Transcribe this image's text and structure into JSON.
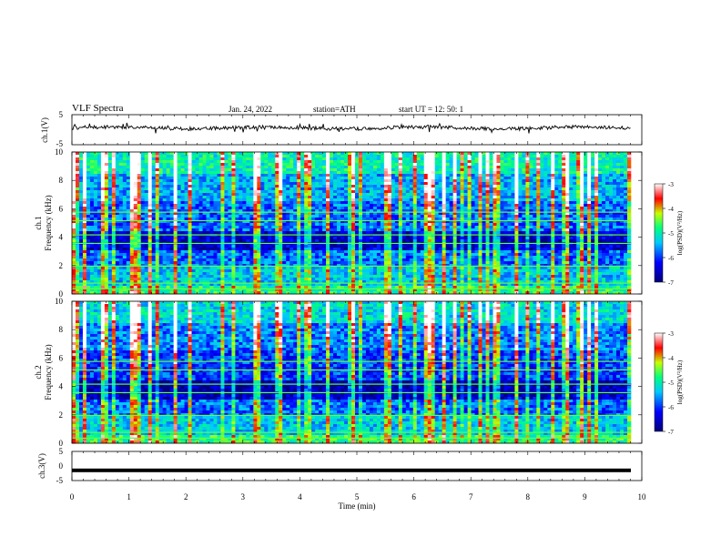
{
  "header": {
    "title": "VLF  Spectra",
    "date": "Jan. 24, 2022",
    "station": "station=ATH",
    "start": "start  UT  =   12: 50: 1"
  },
  "colors": {
    "spectrogram_low": "#00007a",
    "spectrogram_mid": "#00c8ff",
    "spectrogram_high": "#ff0000",
    "trace": "#000000"
  },
  "chart_data": [
    {
      "type": "line",
      "panel": "ch1-waveform",
      "ylabel": "ch.1(V)",
      "ylim": [
        -5,
        5
      ],
      "yticks": [
        "5",
        "-5"
      ],
      "xlim": [
        0,
        10
      ],
      "series": [
        {
          "values_description_free": true,
          "level": 0.5,
          "noise": 0.6
        }
      ]
    },
    {
      "type": "heatmap",
      "panel": "ch1-spectrogram",
      "ylabel": "ch.1\nFrequency (kHz)",
      "ylabel_line1": "ch.1",
      "ylabel_line2": "Frequency (kHz)",
      "ylim": [
        0,
        10
      ],
      "yticks": [
        "0",
        "2",
        "4",
        "6",
        "8",
        "10"
      ],
      "xlim": [
        0,
        9.8
      ],
      "colorbar": {
        "label": "log(PSD)(V²/Hz)",
        "range": [
          -7,
          -3
        ],
        "ticks": [
          "-3",
          "-4",
          "-5",
          "-6",
          "-7"
        ]
      }
    },
    {
      "type": "heatmap",
      "panel": "ch2-spectrogram",
      "ylabel_line1": "ch.2",
      "ylabel_line2": "Frequency (kHz)",
      "ylim": [
        0,
        10
      ],
      "yticks": [
        "0",
        "2",
        "4",
        "6",
        "8",
        "10"
      ],
      "xlim": [
        0,
        9.8
      ],
      "colorbar": {
        "label": "log(PSD)(V²/Hz)",
        "range": [
          -7,
          -3
        ],
        "ticks": [
          "-3",
          "-4",
          "-5",
          "-6",
          "-7"
        ]
      }
    },
    {
      "type": "line",
      "panel": "ch3-waveform",
      "ylabel": "ch.3(V)",
      "ylim": [
        -5,
        5
      ],
      "yticks": [
        "5",
        "0",
        "-5"
      ],
      "xlim": [
        0,
        10
      ],
      "series": [
        {
          "level": -1.5
        }
      ]
    }
  ],
  "xaxis": {
    "label": "Time  (min)",
    "range": [
      0,
      10
    ],
    "ticks": [
      "0",
      "1",
      "2",
      "3",
      "4",
      "5",
      "6",
      "7",
      "8",
      "9",
      "10"
    ]
  }
}
